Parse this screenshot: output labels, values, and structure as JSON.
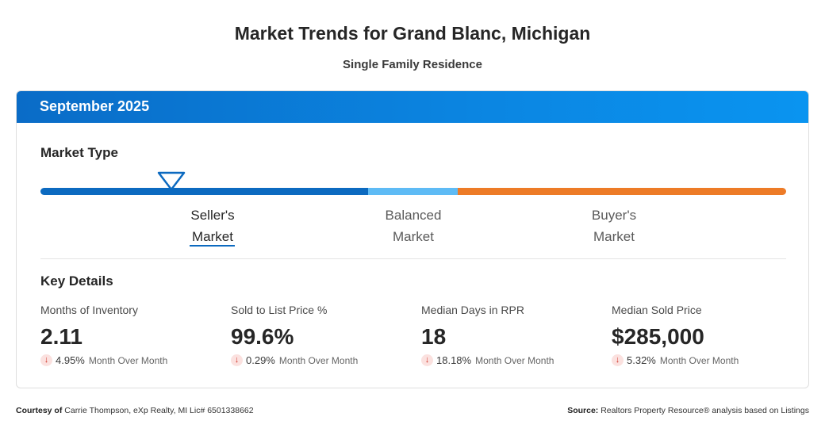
{
  "header": {
    "title": "Market Trends for Grand Blanc, Michigan",
    "subtitle": "Single Family Residence"
  },
  "card": {
    "period": "September 2025",
    "market_type": {
      "label": "Market Type",
      "labels": {
        "seller_line1": "Seller's",
        "seller_line2": "Market",
        "balanced_line1": "Balanced",
        "balanced_line2": "Market",
        "buyer_line1": "Buyer's",
        "buyer_line2": "Market"
      },
      "selected": "Seller's Market",
      "colors": {
        "seller": "#0c6ac0",
        "balanced": "#5ebbf5",
        "buyer": "#ed7b27"
      }
    },
    "key_details": {
      "label": "Key Details",
      "metrics": [
        {
          "label": "Months of Inventory",
          "value": "2.11",
          "change": "4.95%",
          "period": "Month Over Month",
          "direction": "down"
        },
        {
          "label": "Sold to List Price %",
          "value": "99.6%",
          "change": "0.29%",
          "period": "Month Over Month",
          "direction": "down"
        },
        {
          "label": "Median Days in RPR",
          "value": "18",
          "change": "18.18%",
          "period": "Month Over Month",
          "direction": "down"
        },
        {
          "label": "Median Sold Price",
          "value": "$285,000",
          "change": "5.32%",
          "period": "Month Over Month",
          "direction": "down"
        }
      ]
    }
  },
  "footer": {
    "courtesy_label": "Courtesy of",
    "courtesy_text": "Carrie Thompson, eXp Realty, MI Lic# 6501338662",
    "source_label": "Source:",
    "source_text": "Realtors Property Resource® analysis based on Listings"
  },
  "icons": {
    "down_arrow": "arrow-down-icon",
    "marker": "triangle-marker-icon"
  }
}
